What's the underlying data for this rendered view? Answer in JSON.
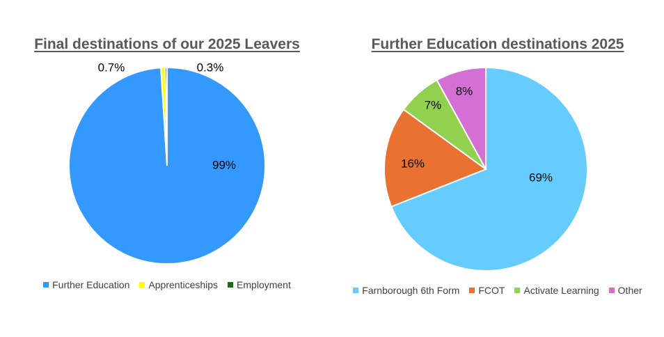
{
  "chart_data": [
    {
      "type": "pie",
      "title": "Final destinations of our 2025 Leavers",
      "categories": [
        "Further Education",
        "Apprenticeships",
        "Employment"
      ],
      "values": [
        99,
        0.7,
        0.3
      ],
      "labels": [
        "99%",
        "0.7%",
        "0.3%"
      ],
      "colors": [
        "#3399FF",
        "#FFFF00",
        "#1E6B1E"
      ],
      "legend_position": "bottom"
    },
    {
      "type": "pie",
      "title": "Further Education destinations 2025",
      "categories": [
        "Farnborough 6th Form",
        "FCOT",
        "Activate Learning",
        "Other"
      ],
      "values": [
        69,
        16,
        7,
        8
      ],
      "labels": [
        "69%",
        "16%",
        "7%",
        "8%"
      ],
      "colors": [
        "#66CCFF",
        "#E97132",
        "#92D050",
        "#D46FD4"
      ],
      "legend_position": "bottom"
    }
  ]
}
